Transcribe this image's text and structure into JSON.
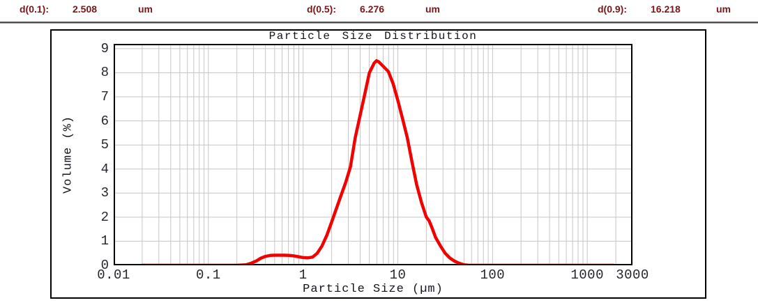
{
  "header": {
    "text_color": "#7d1518",
    "items": [
      {
        "label": "d(0.1):",
        "value": "2.508",
        "unit": "um"
      },
      {
        "label": "d(0.5):",
        "value": "6.276",
        "unit": "um"
      },
      {
        "label": "d(0.9):",
        "value": "16.218",
        "unit": "um"
      }
    ]
  },
  "chart_data": {
    "type": "line",
    "title": "Particle Size Distribution",
    "xlabel": "Particle Size (µm)",
    "ylabel": "Volume (%)",
    "x_scale": "log",
    "xlim": [
      0.01,
      3000
    ],
    "ylim": [
      0,
      9.2
    ],
    "grid": true,
    "legend": "none",
    "x_tick_labels": [
      "0.01",
      "0.1",
      "1",
      "10",
      "100",
      "1000",
      "3000"
    ],
    "x_tick_values": [
      0.01,
      0.1,
      1,
      10,
      100,
      1000,
      3000
    ],
    "y_ticks": [
      0,
      1,
      2,
      3,
      4,
      5,
      6,
      7,
      8,
      9
    ],
    "line_color": "#f30000",
    "grid_color": "#c6c6c6",
    "axis_color": "#000000",
    "series": [
      {
        "name": "Volume (%)",
        "points": [
          [
            0.02,
            0
          ],
          [
            0.05,
            0
          ],
          [
            0.1,
            0
          ],
          [
            0.15,
            0
          ],
          [
            0.2,
            0
          ],
          [
            0.25,
            0.02
          ],
          [
            0.28,
            0.08
          ],
          [
            0.32,
            0.18
          ],
          [
            0.36,
            0.3
          ],
          [
            0.4,
            0.37
          ],
          [
            0.45,
            0.41
          ],
          [
            0.5,
            0.42
          ],
          [
            0.56,
            0.42
          ],
          [
            0.63,
            0.42
          ],
          [
            0.71,
            0.41
          ],
          [
            0.8,
            0.39
          ],
          [
            0.89,
            0.36
          ],
          [
            1.0,
            0.32
          ],
          [
            1.12,
            0.31
          ],
          [
            1.26,
            0.34
          ],
          [
            1.41,
            0.5
          ],
          [
            1.58,
            0.8
          ],
          [
            1.78,
            1.25
          ],
          [
            2.0,
            1.8
          ],
          [
            2.24,
            2.35
          ],
          [
            2.51,
            2.9
          ],
          [
            2.82,
            3.45
          ],
          [
            3.16,
            4.1
          ],
          [
            3.55,
            5.3
          ],
          [
            3.98,
            6.2
          ],
          [
            4.47,
            7.1
          ],
          [
            5.01,
            8.0
          ],
          [
            5.62,
            8.4
          ],
          [
            5.96,
            8.5
          ],
          [
            6.31,
            8.45
          ],
          [
            7.08,
            8.25
          ],
          [
            7.94,
            8.05
          ],
          [
            8.91,
            7.55
          ],
          [
            10.0,
            6.85
          ],
          [
            11.2,
            6.1
          ],
          [
            12.6,
            5.3
          ],
          [
            14.1,
            4.3
          ],
          [
            15.8,
            3.35
          ],
          [
            17.8,
            2.6
          ],
          [
            20.0,
            2.0
          ],
          [
            21.4,
            1.85
          ],
          [
            23.0,
            1.55
          ],
          [
            25.1,
            1.15
          ],
          [
            28.2,
            0.8
          ],
          [
            31.6,
            0.5
          ],
          [
            35.5,
            0.3
          ],
          [
            39.8,
            0.17
          ],
          [
            44.7,
            0.08
          ],
          [
            50.1,
            0.02
          ],
          [
            56.2,
            0
          ],
          [
            70.8,
            0
          ],
          [
            100,
            0
          ],
          [
            200,
            0
          ],
          [
            500,
            0
          ],
          [
            1000,
            0
          ],
          [
            1900,
            0
          ]
        ]
      }
    ]
  }
}
